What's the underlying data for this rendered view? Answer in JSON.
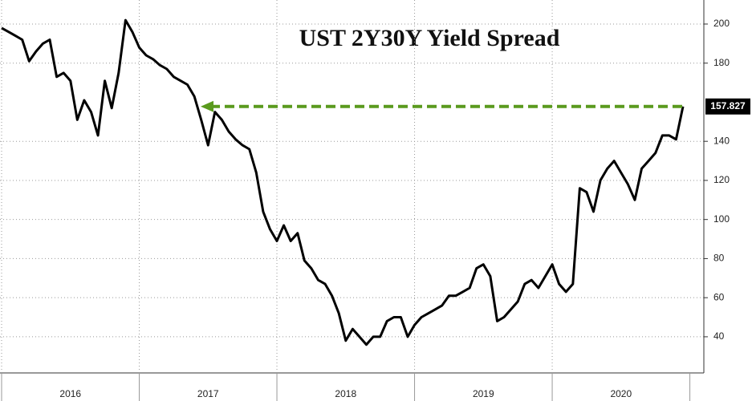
{
  "chart_data": {
    "type": "line",
    "title": "UST 2Y30Y Yield Spread",
    "categories": [
      null,
      null,
      null,
      null,
      null,
      null,
      null,
      null,
      null,
      null,
      "2016",
      null,
      null,
      null,
      null,
      null,
      null,
      null,
      null,
      null,
      null,
      null,
      null,
      null,
      null,
      null,
      null,
      null,
      null,
      null,
      "2017",
      null,
      null,
      null,
      null,
      null,
      null,
      null,
      null,
      null,
      null,
      null,
      null,
      null,
      null,
      null,
      null,
      null,
      null,
      null,
      "2018",
      null,
      null,
      null,
      null,
      null,
      null,
      null,
      null,
      null,
      null,
      null,
      null,
      null,
      null,
      null,
      null,
      null,
      null,
      null,
      "2019",
      null,
      null,
      null,
      null,
      null,
      null,
      null,
      null,
      null,
      null,
      null,
      null,
      null,
      null,
      null,
      null,
      null,
      null,
      null,
      "2020",
      null,
      null,
      null,
      null,
      null,
      null,
      null,
      null,
      null
    ],
    "series": [
      {
        "name": "UST 2Y30Y",
        "color": "#000000",
        "values": [
          198,
          196,
          194,
          192,
          181,
          186,
          190,
          192,
          173,
          175,
          171,
          151,
          161,
          155,
          143,
          171,
          157,
          175,
          202,
          196,
          188,
          184,
          182,
          179,
          177,
          173,
          171,
          169,
          163,
          151,
          138,
          155,
          151,
          145,
          141,
          138,
          136,
          124,
          104,
          95,
          89,
          97,
          89,
          93,
          79,
          75,
          69,
          67,
          61,
          52,
          38,
          44,
          40,
          36,
          40,
          40,
          48,
          50,
          50,
          40,
          46,
          50,
          52,
          54,
          56,
          61,
          61,
          63,
          65,
          75,
          77,
          71,
          48,
          50,
          54,
          58,
          67,
          69,
          65,
          71,
          77,
          67,
          63,
          67,
          116,
          114,
          104,
          120,
          126,
          130,
          124,
          118,
          110,
          126,
          130,
          134,
          143,
          143,
          141,
          157.827
        ]
      }
    ],
    "ylim": [
      21.5,
      212.3
    ],
    "yticks": [
      40,
      60,
      80,
      100,
      120,
      140,
      180,
      200
    ],
    "grid": true,
    "annotation_color": "#5a9a1e"
  }
}
